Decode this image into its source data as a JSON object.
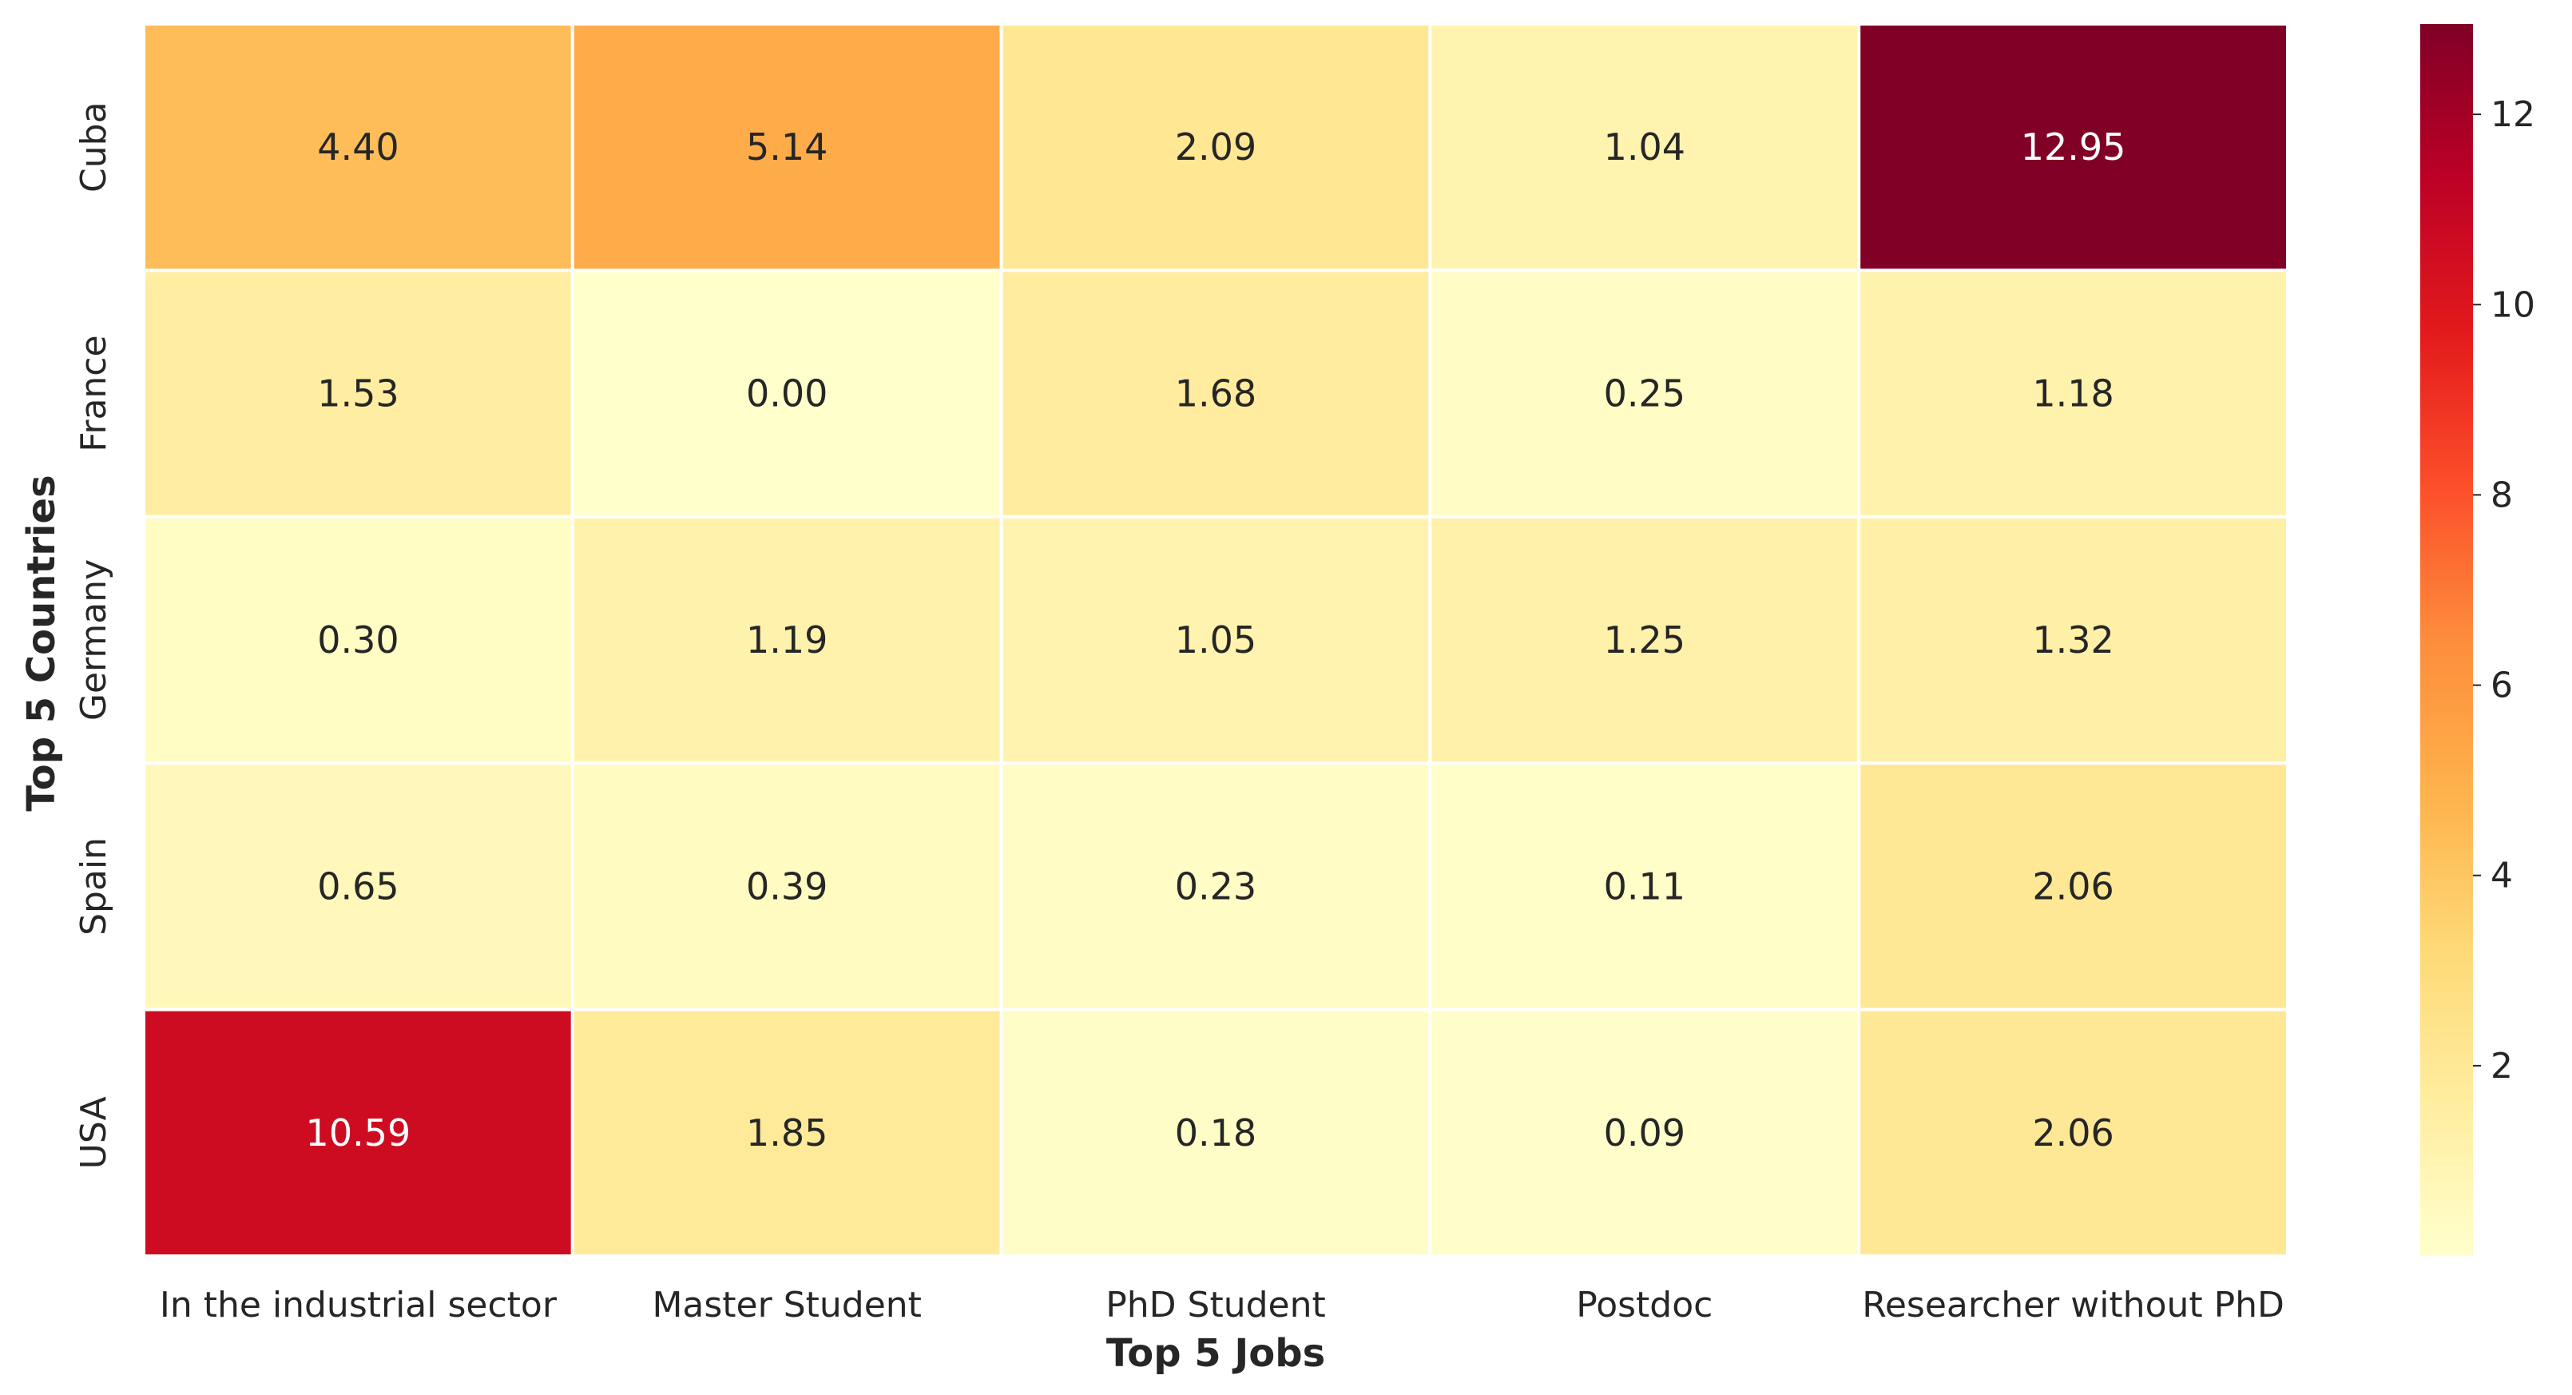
{
  "chart_data": {
    "type": "heatmap",
    "title": "",
    "xlabel": "Top 5 Jobs",
    "ylabel": "Top 5 Countries",
    "x_categories": [
      "In the industrial sector",
      "Master Student",
      "PhD Student",
      "Postdoc",
      "Researcher without PhD"
    ],
    "y_categories": [
      "Cuba",
      "France",
      "Germany",
      "Spain",
      "USA"
    ],
    "values": [
      [
        4.4,
        5.14,
        2.09,
        1.04,
        12.95
      ],
      [
        1.53,
        0.0,
        1.68,
        0.25,
        1.18
      ],
      [
        0.3,
        1.19,
        1.05,
        1.25,
        1.32
      ],
      [
        0.65,
        0.39,
        0.23,
        0.11,
        2.06
      ],
      [
        10.59,
        1.85,
        0.18,
        0.09,
        2.06
      ]
    ],
    "value_format": "0.00",
    "colormap": "YlOrRd",
    "colorbar": {
      "range": [
        0,
        12.95
      ],
      "ticks": [
        2,
        4,
        6,
        8,
        10,
        12
      ]
    },
    "grid": false,
    "legend": "colorbar right"
  }
}
